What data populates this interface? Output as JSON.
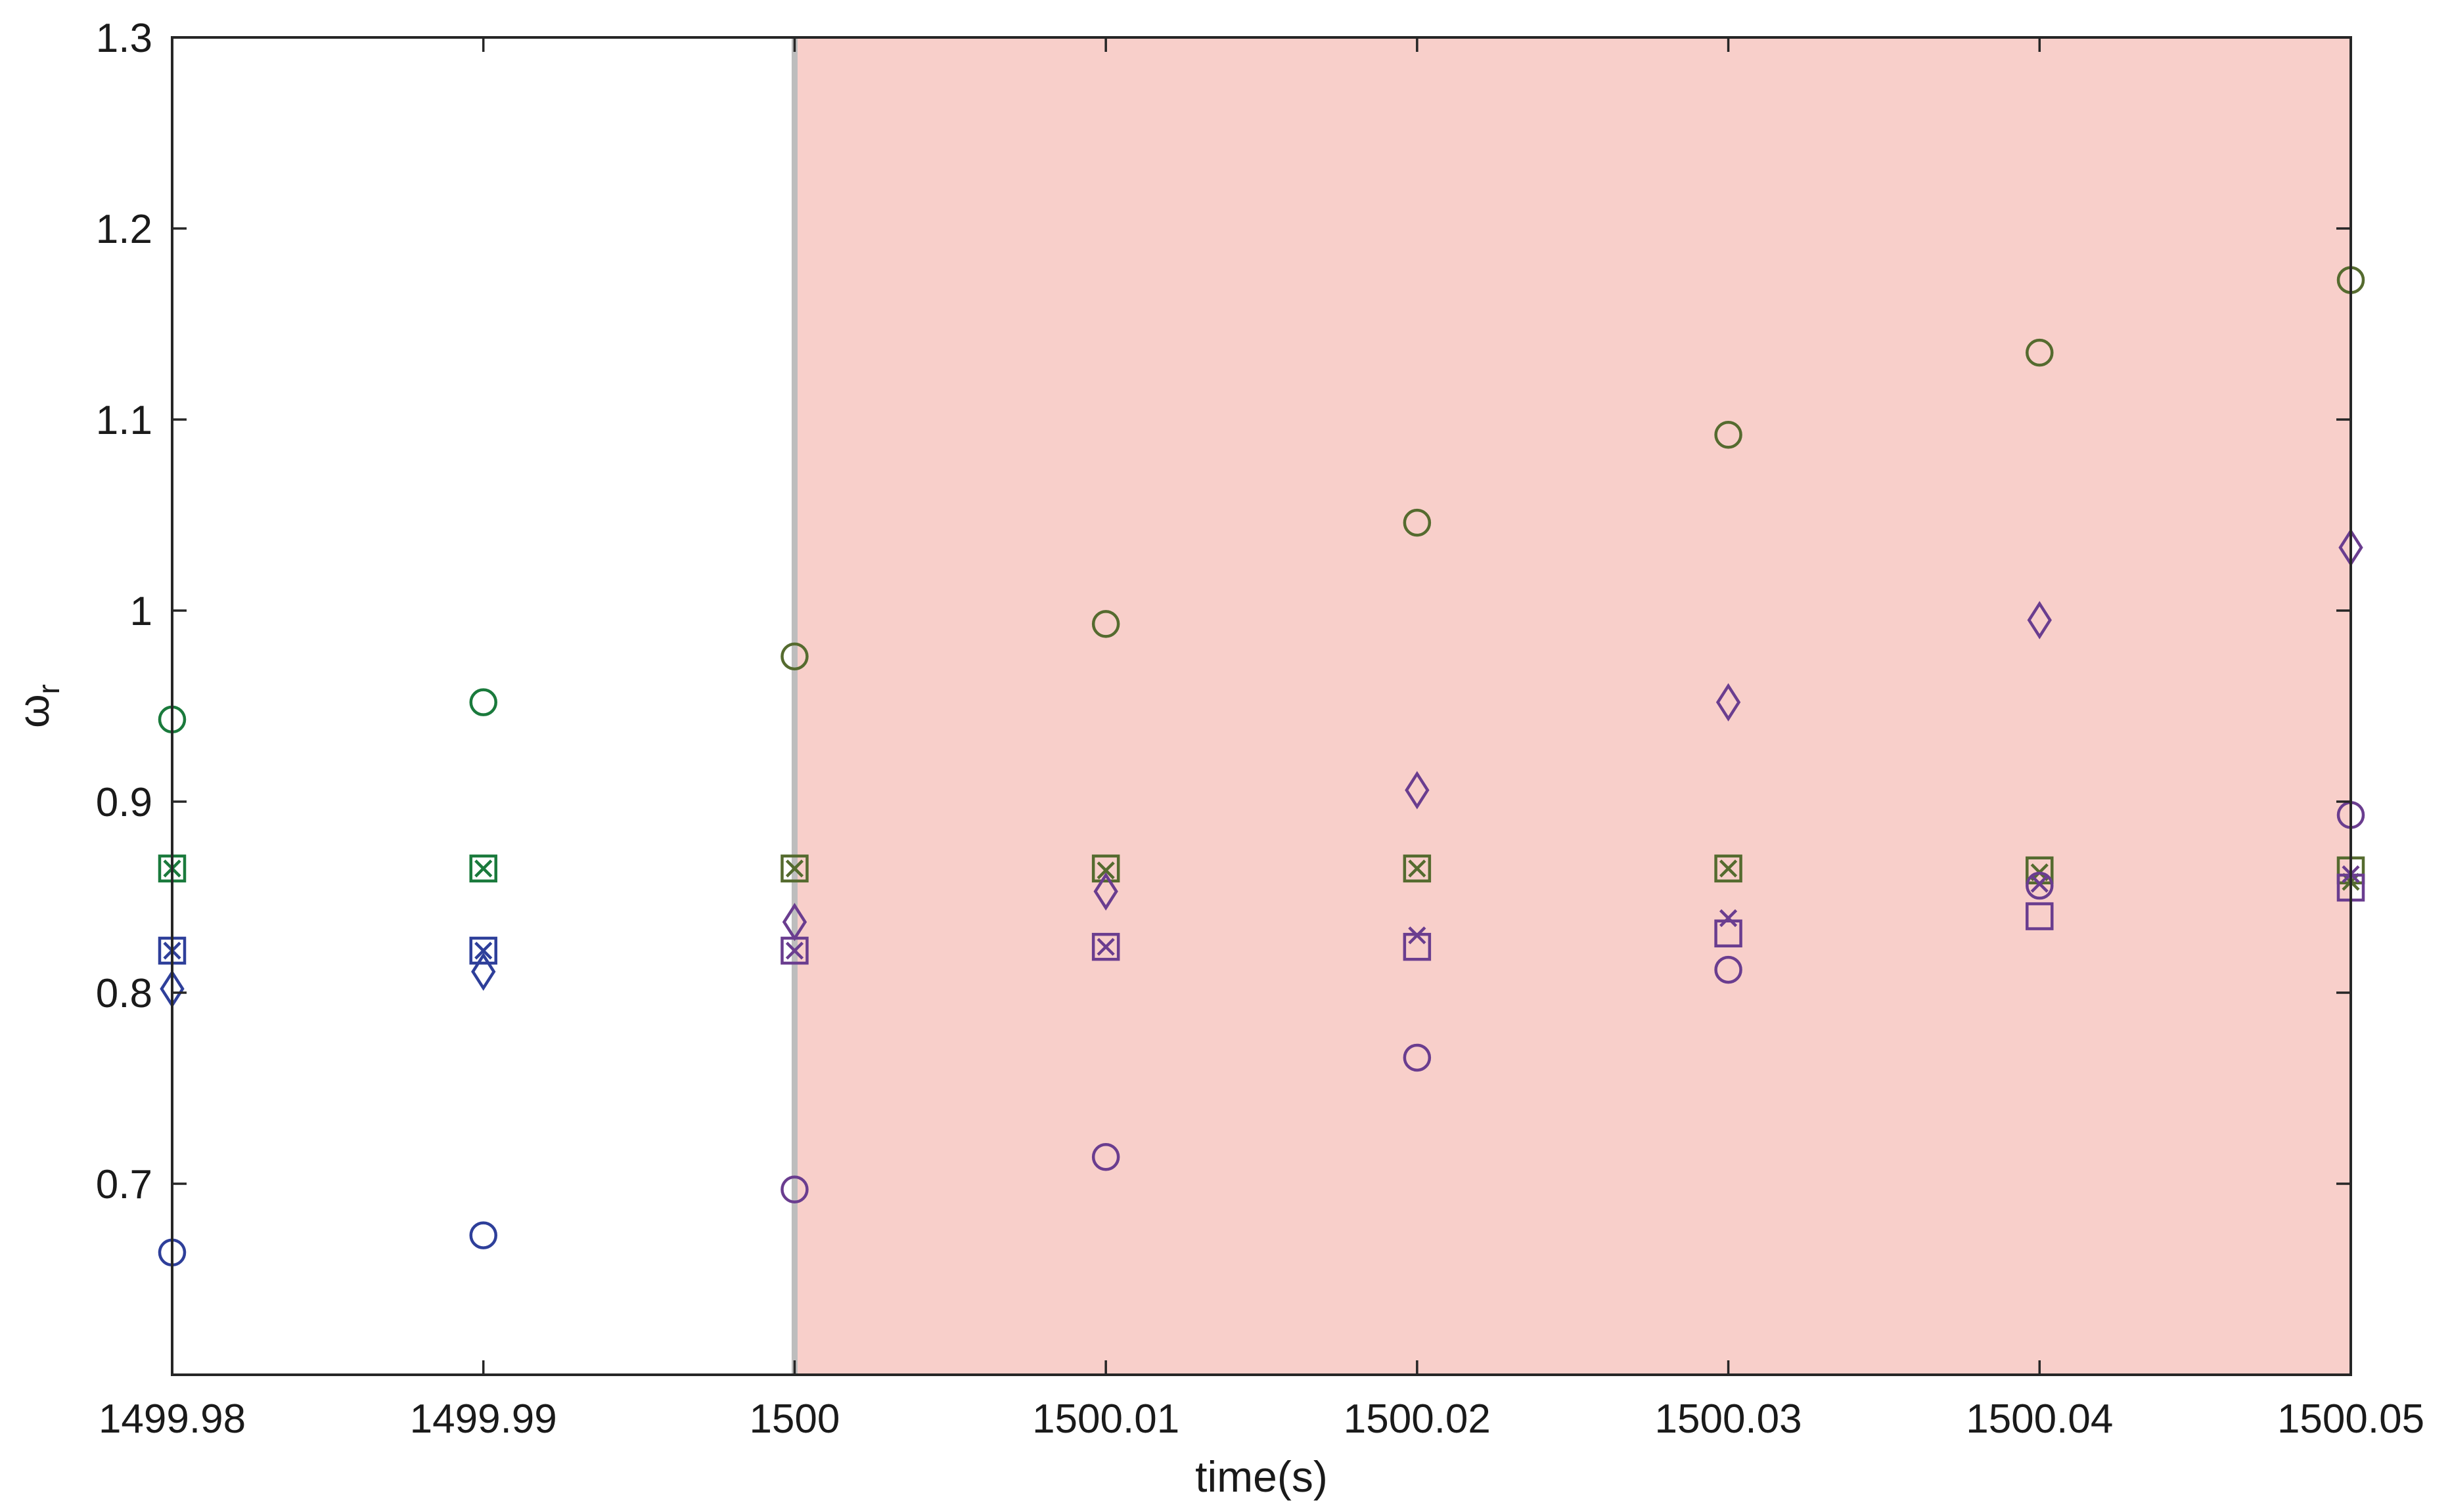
{
  "chart_data": {
    "type": "scatter",
    "xlabel": "time(s)",
    "ylabel": "ω",
    "ylabel_subscript": "r",
    "xlim": [
      1499.98,
      1500.05
    ],
    "ylim": [
      0.6,
      1.3
    ],
    "x_ticks": [
      1499.98,
      1499.99,
      1500,
      1500.01,
      1500.02,
      1500.03,
      1500.04,
      1500.05
    ],
    "x_tick_labels": [
      "1499.98",
      "1499.99",
      "1500",
      "1500.01",
      "1500.02",
      "1500.03",
      "1500.04",
      "1500.05"
    ],
    "y_ticks": [
      0.7,
      0.8,
      0.9,
      1.0,
      1.1,
      1.2,
      1.3
    ],
    "y_tick_labels": [
      "0.7",
      "0.8",
      "0.9",
      "1",
      "1.1",
      "1.2",
      "1.3"
    ],
    "grid": false,
    "shaded_region": {
      "x_start": 1500,
      "x_end": 1500.05,
      "color": "#f8cfca"
    },
    "vertical_line": {
      "x": 1500,
      "color": "#bdbdbd"
    },
    "x": [
      1499.98,
      1499.99,
      1500,
      1500.01,
      1500.02,
      1500.03,
      1500.04,
      1500.05
    ],
    "series": [
      {
        "marker": "circle",
        "values": [
          0.943,
          0.952,
          0.976,
          0.993,
          1.046,
          1.092,
          1.135,
          1.173
        ]
      },
      {
        "marker": "square",
        "values": [
          0.865,
          0.865,
          0.865,
          0.865,
          0.865,
          0.865,
          0.864,
          0.864
        ]
      },
      {
        "marker": "x",
        "values": [
          0.865,
          0.865,
          0.865,
          0.864,
          0.865,
          0.865,
          0.863,
          0.858
        ]
      },
      {
        "marker": "square",
        "values": [
          0.822,
          0.822,
          0.822,
          0.824,
          0.824,
          0.831,
          0.84,
          0.855
        ]
      },
      {
        "marker": "x",
        "values": [
          0.822,
          0.822,
          0.822,
          0.824,
          0.83,
          0.839,
          0.857,
          0.862
        ]
      },
      {
        "marker": "diamond",
        "values": [
          0.802,
          0.811,
          0.837,
          0.853,
          0.906,
          0.952,
          0.995,
          1.033
        ]
      },
      {
        "marker": "circle",
        "values": [
          0.664,
          0.673,
          0.697,
          0.714,
          0.766,
          0.812,
          0.856,
          0.893
        ]
      }
    ],
    "color_before": {
      "upper": "#1a7a3c",
      "lower": "#2e3f9a"
    },
    "color_after": {
      "upper": "#556b2f",
      "lower": "#6a3d8f"
    }
  }
}
